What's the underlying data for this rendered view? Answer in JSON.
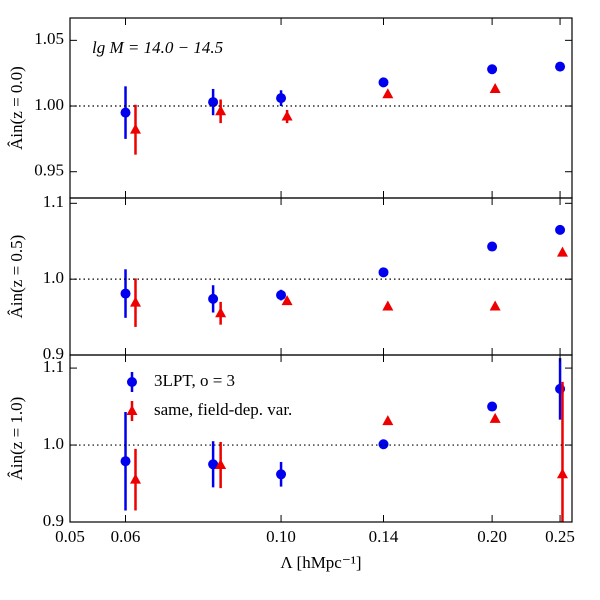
{
  "chart_data": [
    {
      "type": "scatter",
      "ylabel": "Âin(z = 0.0)",
      "annotation": "lg M = 14.0 − 14.5",
      "xlim": [
        0.05,
        0.26
      ],
      "xscale": "log",
      "ylim": [
        0.93,
        1.067
      ],
      "yticks": [
        {
          "value": 0.95,
          "label": "0.95"
        },
        {
          "value": 1,
          "label": "1.00"
        },
        {
          "value": 1.05,
          "label": "1.05"
        }
      ],
      "hline": 1,
      "series": [
        {
          "color": "#0000ee",
          "marker": "circle",
          "x": [
            0.06,
            0.08,
            0.1,
            0.14,
            0.2,
            0.25
          ],
          "values": [
            0.995,
            1.003,
            1.006,
            1.018,
            1.028,
            1.03
          ],
          "errors": [
            0.02,
            0.01,
            0.006,
            null,
            null,
            null
          ]
        },
        {
          "color": "#ee0000",
          "marker": "triangle",
          "x": [
            0.062,
            0.082,
            0.102,
            0.142,
            0.202,
            0.252
          ],
          "values": [
            0.982,
            0.996,
            0.992,
            1.009,
            1.013,
            null
          ],
          "errors": [
            0.019,
            0.009,
            0.005,
            null,
            null,
            null
          ]
        }
      ]
    },
    {
      "type": "scatter",
      "ylabel": "Âin(z = 0.5)",
      "xlim": [
        0.05,
        0.26
      ],
      "xscale": "log",
      "ylim": [
        0.9,
        1.107
      ],
      "yticks": [
        0.9,
        {
          "value": 1,
          "label": "1.0"
        },
        1.1
      ],
      "hline": 1,
      "series": [
        {
          "color": "#0000ee",
          "marker": "circle",
          "x": [
            0.06,
            0.08,
            0.1,
            0.14,
            0.2,
            0.25
          ],
          "values": [
            0.981,
            0.974,
            0.979,
            1.009,
            1.043,
            1.065
          ],
          "errors": [
            0.032,
            0.018,
            0.007,
            null,
            null,
            null
          ]
        },
        {
          "color": "#ee0000",
          "marker": "triangle",
          "x": [
            0.062,
            0.082,
            0.102,
            0.142,
            0.202,
            0.252
          ],
          "values": [
            0.969,
            0.955,
            0.971,
            0.964,
            0.964,
            1.035
          ],
          "errors": [
            0.032,
            0.015,
            0.004,
            null,
            null,
            null
          ]
        }
      ]
    },
    {
      "type": "scatter",
      "ylabel": "Âin(z = 1.0)",
      "xlabel": "Λ [hMpc⁻¹]",
      "xlim": [
        0.05,
        0.26
      ],
      "xscale": "log",
      "xticks": [
        {
          "value": 0.05,
          "label": "0.05"
        },
        {
          "value": 0.06,
          "label": "0.06"
        },
        {
          "value": 0.1,
          "label": "0.10"
        },
        {
          "value": 0.14,
          "label": "0.14"
        },
        {
          "value": 0.2,
          "label": "0.20"
        },
        {
          "value": 0.25,
          "label": "0.25"
        }
      ],
      "ylim": [
        0.9,
        1.117
      ],
      "yticks": [
        0.9,
        {
          "value": 1,
          "label": "1.0"
        },
        1.1
      ],
      "hline": 1,
      "legend": "upper left",
      "series": [
        {
          "name": "3LPT, o = 3",
          "color": "#0000ee",
          "marker": "circle",
          "x": [
            0.06,
            0.08,
            0.1,
            0.14,
            0.2,
            0.25
          ],
          "values": [
            0.979,
            0.975,
            0.962,
            1.001,
            1.05,
            1.073
          ],
          "errors": [
            0.064,
            0.03,
            0.016,
            null,
            null,
            0.04
          ]
        },
        {
          "name": "same, field-dep. var.",
          "color": "#ee0000",
          "marker": "triangle",
          "x": [
            0.062,
            0.082,
            0.102,
            0.142,
            0.202,
            0.252
          ],
          "values": [
            0.955,
            0.974,
            null,
            1.031,
            1.034,
            0.962
          ],
          "errors": [
            0.04,
            0.03,
            null,
            null,
            null,
            0.12
          ]
        }
      ]
    }
  ]
}
